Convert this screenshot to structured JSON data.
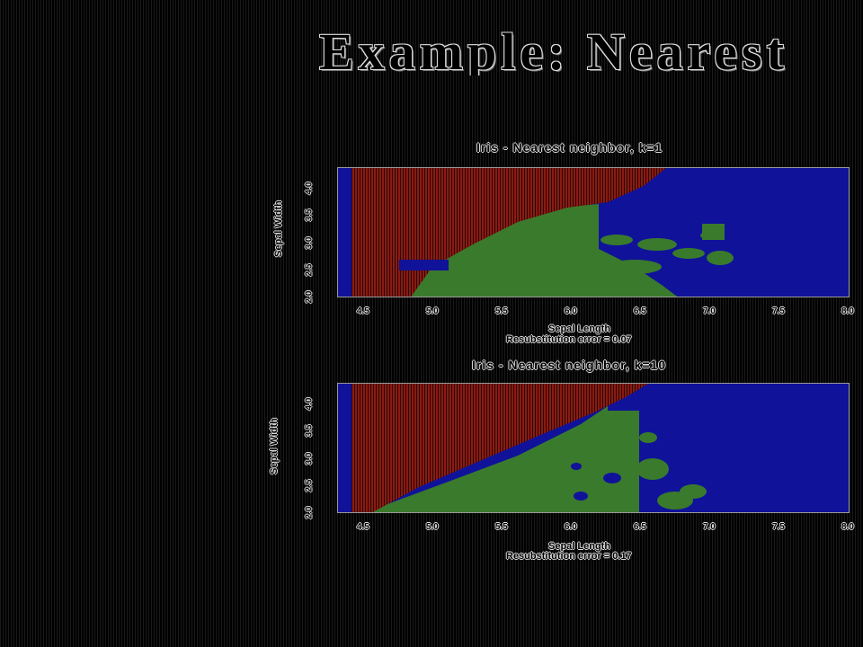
{
  "slide": {
    "title": "Example:  Nearest"
  },
  "colors": {
    "setosa_region": "#8b1a12",
    "versicolor_region": "#3a7a2c",
    "virginica_region": "#10129a",
    "background": "#000000"
  },
  "chart_data": [
    {
      "type": "heatmap",
      "title": "Iris - Nearest neighbor, k=1",
      "xlabel": "Sepal Length",
      "ylabel": "Sepal Width",
      "xlim": [
        4.3,
        8.0
      ],
      "ylim": [
        2.0,
        4.4
      ],
      "xticks": [
        "4.5",
        "5.0",
        "5.5",
        "6.0",
        "6.5",
        "7.0",
        "7.5",
        "8.0"
      ],
      "yticks": [
        "2.0",
        "2.5",
        "3.0",
        "3.5",
        "4.0"
      ],
      "caption": "Resubstitution error = 0.07"
    },
    {
      "type": "heatmap",
      "title": "Iris - Nearest neighbor, k=10",
      "xlabel": "Sepal Length",
      "ylabel": "Sepal Width",
      "xlim": [
        4.3,
        8.0
      ],
      "ylim": [
        2.0,
        4.4
      ],
      "xticks": [
        "4.5",
        "5.0",
        "5.5",
        "6.0",
        "6.5",
        "7.0",
        "7.5",
        "8.0"
      ],
      "yticks": [
        "2.0",
        "2.5",
        "3.0",
        "3.5",
        "4.0"
      ],
      "caption": "Resubstitution error = 0.17"
    }
  ]
}
